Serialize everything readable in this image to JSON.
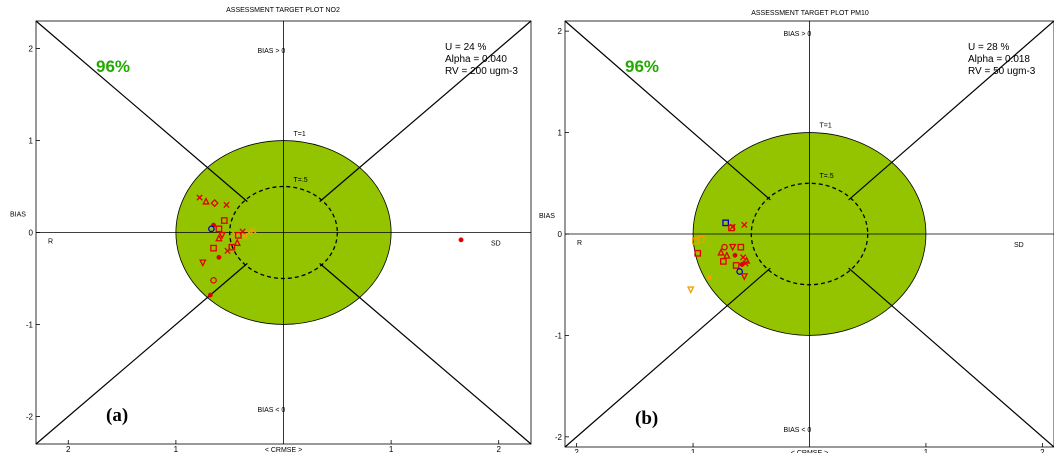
{
  "colors": {
    "target_fill": "#94c400",
    "axis": "#000000",
    "percent_text": "#22aa00",
    "marker_red": "#e00000",
    "marker_orange": "#f0a000",
    "marker_blue": "#0000cc"
  },
  "chart_data": [
    {
      "type": "scatter",
      "panel_label": "(a)",
      "title": "ASSESSMENT TARGET PLOT  NO2",
      "xlabel": "< CRMSE >",
      "ylabel": "BIAS",
      "left_label": "R",
      "right_label": "SD",
      "bias_pos_label": "BIAS > 0",
      "bias_neg_label": "BIAS < 0",
      "target_label": "T=1",
      "half_target_label": "T=.5",
      "percent": "96%",
      "info": [
        "U = 24 %",
        "Alpha = 0.040",
        "RV = 200 ugm-3"
      ],
      "xlim": [
        -2.3,
        2.3
      ],
      "ylim": [
        -2.3,
        2.3
      ],
      "x_ticks": [
        -2,
        -1,
        1,
        2
      ],
      "x_tick_labels": [
        "2",
        "1",
        "1",
        "2"
      ],
      "y_ticks": [
        2,
        1,
        0,
        -1,
        -2
      ],
      "y_tick_labels": [
        "2",
        "1",
        "0",
        "-1",
        "-2"
      ],
      "points": [
        {
          "x": -0.78,
          "y": 0.38,
          "color": "red",
          "marker": "x"
        },
        {
          "x": -0.72,
          "y": 0.34,
          "color": "red",
          "marker": "triangle"
        },
        {
          "x": -0.64,
          "y": 0.32,
          "color": "red",
          "marker": "diamond"
        },
        {
          "x": -0.53,
          "y": 0.3,
          "color": "red",
          "marker": "x"
        },
        {
          "x": -0.55,
          "y": 0.13,
          "color": "red",
          "marker": "square"
        },
        {
          "x": -0.65,
          "y": 0.08,
          "color": "red",
          "marker": "dot"
        },
        {
          "x": -0.67,
          "y": 0.04,
          "color": "blue",
          "marker": "circle"
        },
        {
          "x": -0.6,
          "y": 0.04,
          "color": "red",
          "marker": "square"
        },
        {
          "x": -0.57,
          "y": -0.03,
          "color": "red",
          "marker": "triangle-down"
        },
        {
          "x": -0.6,
          "y": -0.06,
          "color": "red",
          "marker": "triangle"
        },
        {
          "x": -0.45,
          "y": -0.02,
          "color": "orange",
          "marker": "x"
        },
        {
          "x": -0.42,
          "y": -0.03,
          "color": "red",
          "marker": "square"
        },
        {
          "x": -0.38,
          "y": 0.01,
          "color": "red",
          "marker": "x"
        },
        {
          "x": -0.36,
          "y": -0.04,
          "color": "orange",
          "marker": "dot"
        },
        {
          "x": -0.32,
          "y": 0.0,
          "color": "orange",
          "marker": "x"
        },
        {
          "x": -0.28,
          "y": 0.02,
          "color": "orange",
          "marker": "x"
        },
        {
          "x": -0.43,
          "y": -0.11,
          "color": "red",
          "marker": "triangle"
        },
        {
          "x": -0.48,
          "y": -0.16,
          "color": "red",
          "marker": "square"
        },
        {
          "x": -0.52,
          "y": -0.2,
          "color": "red",
          "marker": "x"
        },
        {
          "x": -0.65,
          "y": -0.17,
          "color": "red",
          "marker": "square"
        },
        {
          "x": -0.6,
          "y": -0.27,
          "color": "red",
          "marker": "dot"
        },
        {
          "x": -0.75,
          "y": -0.33,
          "color": "red",
          "marker": "triangle-down"
        },
        {
          "x": -0.65,
          "y": -0.52,
          "color": "red",
          "marker": "circle"
        },
        {
          "x": -0.68,
          "y": -0.68,
          "color": "red",
          "marker": "dot"
        },
        {
          "x": 1.65,
          "y": -0.08,
          "color": "red",
          "marker": "dot"
        }
      ]
    },
    {
      "type": "scatter",
      "panel_label": "(b)",
      "title": "ASSESSMENT TARGET PLOT  PM10",
      "xlabel": "< CRMSE >",
      "ylabel": "BIAS",
      "left_label": "R",
      "right_label": "SD",
      "bias_pos_label": "BIAS > 0",
      "bias_neg_label": "BIAS < 0",
      "target_label": "T=1",
      "half_target_label": "T=.5",
      "percent": "96%",
      "info": [
        "U = 28 %",
        "Alpha = 0.018",
        "RV = 50 ugm-3"
      ],
      "xlim": [
        -2.1,
        2.1
      ],
      "ylim": [
        -2.1,
        2.1
      ],
      "x_ticks": [
        -2,
        -1,
        1,
        2
      ],
      "x_tick_labels": [
        "2",
        "1",
        "1",
        "2"
      ],
      "y_ticks": [
        2,
        1,
        0,
        -1,
        -2
      ],
      "y_tick_labels": [
        "2",
        "1",
        "0",
        "-1",
        "-2"
      ],
      "points": [
        {
          "x": -0.72,
          "y": 0.11,
          "color": "blue",
          "marker": "square"
        },
        {
          "x": -0.67,
          "y": 0.06,
          "color": "red",
          "marker": "square"
        },
        {
          "x": -0.66,
          "y": 0.07,
          "color": "red",
          "marker": "x"
        },
        {
          "x": -0.56,
          "y": 0.09,
          "color": "red",
          "marker": "x"
        },
        {
          "x": -0.98,
          "y": -0.07,
          "color": "orange",
          "marker": "square"
        },
        {
          "x": -0.93,
          "y": -0.05,
          "color": "orange",
          "marker": "square"
        },
        {
          "x": -0.73,
          "y": -0.13,
          "color": "red",
          "marker": "circle"
        },
        {
          "x": -0.66,
          "y": -0.13,
          "color": "red",
          "marker": "triangle-down"
        },
        {
          "x": -0.59,
          "y": -0.13,
          "color": "red",
          "marker": "square"
        },
        {
          "x": -0.76,
          "y": -0.18,
          "color": "red",
          "marker": "triangle"
        },
        {
          "x": -0.71,
          "y": -0.21,
          "color": "red",
          "marker": "triangle"
        },
        {
          "x": -0.64,
          "y": -0.21,
          "color": "red",
          "marker": "dot"
        },
        {
          "x": -0.57,
          "y": -0.23,
          "color": "red",
          "marker": "x"
        },
        {
          "x": -0.54,
          "y": -0.26,
          "color": "red",
          "marker": "triangle"
        },
        {
          "x": -0.96,
          "y": -0.19,
          "color": "red",
          "marker": "square"
        },
        {
          "x": -0.74,
          "y": -0.27,
          "color": "red",
          "marker": "square"
        },
        {
          "x": -0.63,
          "y": -0.31,
          "color": "red",
          "marker": "square"
        },
        {
          "x": -0.58,
          "y": -0.3,
          "color": "red",
          "marker": "dot"
        },
        {
          "x": -0.55,
          "y": -0.29,
          "color": "red",
          "marker": "x"
        },
        {
          "x": -0.6,
          "y": -0.37,
          "color": "blue",
          "marker": "circle"
        },
        {
          "x": -0.56,
          "y": -0.42,
          "color": "red",
          "marker": "triangle-down"
        },
        {
          "x": -0.86,
          "y": -0.43,
          "color": "orange",
          "marker": "dot"
        },
        {
          "x": -1.02,
          "y": -0.55,
          "color": "orange",
          "marker": "triangle-down"
        }
      ]
    }
  ]
}
